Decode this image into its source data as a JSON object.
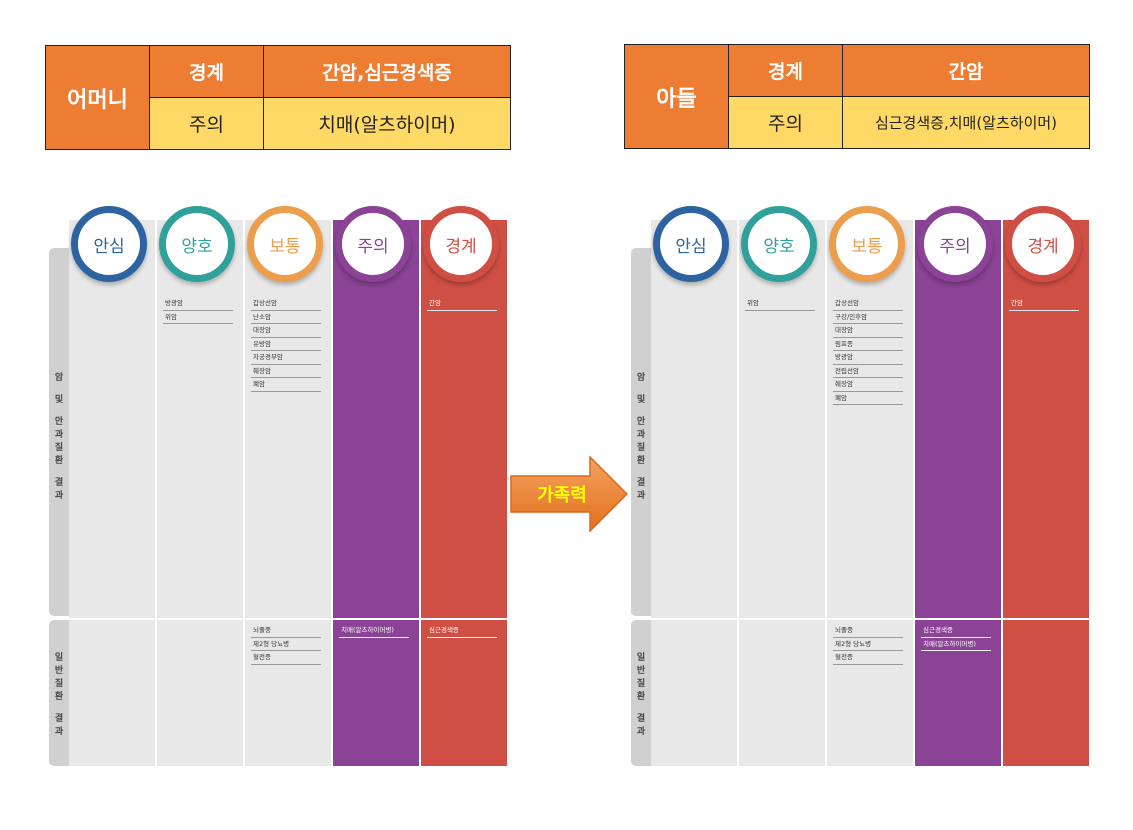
{
  "tables": [
    {
      "person": "어머니",
      "row1": {
        "level": "경계",
        "value": "간암,심근경색증"
      },
      "row2": {
        "level": "주의",
        "value": "치매(알츠하이머)"
      }
    },
    {
      "person": "아들",
      "row1": {
        "level": "경계",
        "value": "간암"
      },
      "row2": {
        "level": "주의",
        "value": "심근경색증,치매(알츠하이머)"
      }
    }
  ],
  "levels": [
    "안심",
    "양호",
    "보통",
    "주의",
    "경계"
  ],
  "side_labels": {
    "top": [
      "암",
      "및",
      "안",
      "과",
      "질",
      "환",
      "결",
      "과"
    ],
    "bottom": [
      "일",
      "반",
      "질",
      "환",
      "결",
      "과"
    ]
  },
  "arrow_label": "가족력",
  "panels": [
    {
      "top": {
        "안심": [],
        "양호": [
          "방광암",
          "위암"
        ],
        "보통": [
          "갑상선암",
          "난소암",
          "대장암",
          "유방암",
          "자궁경부암",
          "췌장암",
          "폐암"
        ],
        "주의": [],
        "경계": [
          "간암"
        ]
      },
      "bottom": {
        "안심": [],
        "양호": [],
        "보통": [
          "뇌졸중",
          "제2형 당뇨병",
          "혈전증"
        ],
        "주의": [
          "치매(알츠하이머병)"
        ],
        "경계": [
          "심근경색증"
        ]
      }
    },
    {
      "top": {
        "안심": [],
        "양호": [
          "위암"
        ],
        "보통": [
          "갑상선암",
          "구강/인후암",
          "대장암",
          "림프종",
          "방광암",
          "전립선암",
          "췌장암",
          "폐암"
        ],
        "주의": [],
        "경계": [
          "간암"
        ]
      },
      "bottom": {
        "안심": [],
        "양호": [],
        "보통": [
          "뇌졸중",
          "제2형 당뇨병",
          "혈전증"
        ],
        "주의": [
          "심근경색증",
          "치매(알츠하이머병)"
        ],
        "경계": []
      }
    }
  ],
  "colors": {
    "orange": "#ec7d32",
    "yellow": "#ffd966",
    "blue": "#2e63a2",
    "teal": "#30a09a",
    "light_orange": "#ec9e4d",
    "purple": "#8b4396",
    "red": "#d04f45"
  }
}
